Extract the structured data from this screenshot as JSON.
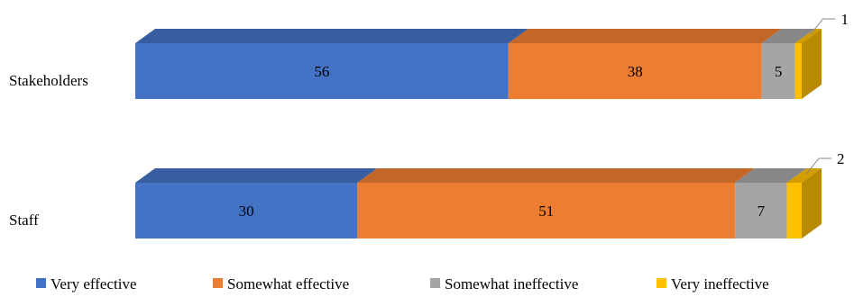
{
  "chart_data": {
    "type": "bar",
    "orientation": "horizontal",
    "stacked": true,
    "percent_stacked": true,
    "style": "3d",
    "categories": [
      "Stakeholders",
      "Staff"
    ],
    "series": [
      {
        "name": "Very effective",
        "values": [
          56,
          30
        ],
        "color": "#4472c4",
        "labels": [
          "56",
          "30"
        ]
      },
      {
        "name": "Somewhat effective",
        "values": [
          38,
          51
        ],
        "color": "#ed7d31",
        "labels": [
          "38",
          "51"
        ]
      },
      {
        "name": "Somewhat ineffective",
        "values": [
          5,
          7
        ],
        "color": "#a5a5a5",
        "labels": [
          "5",
          "7"
        ]
      },
      {
        "name": "Very ineffective",
        "values": [
          1,
          2
        ],
        "color": "#ffc000",
        "labels": [
          "1",
          "2"
        ]
      }
    ],
    "xlim": [
      0,
      100
    ],
    "grid": false,
    "legend_position": "bottom"
  }
}
